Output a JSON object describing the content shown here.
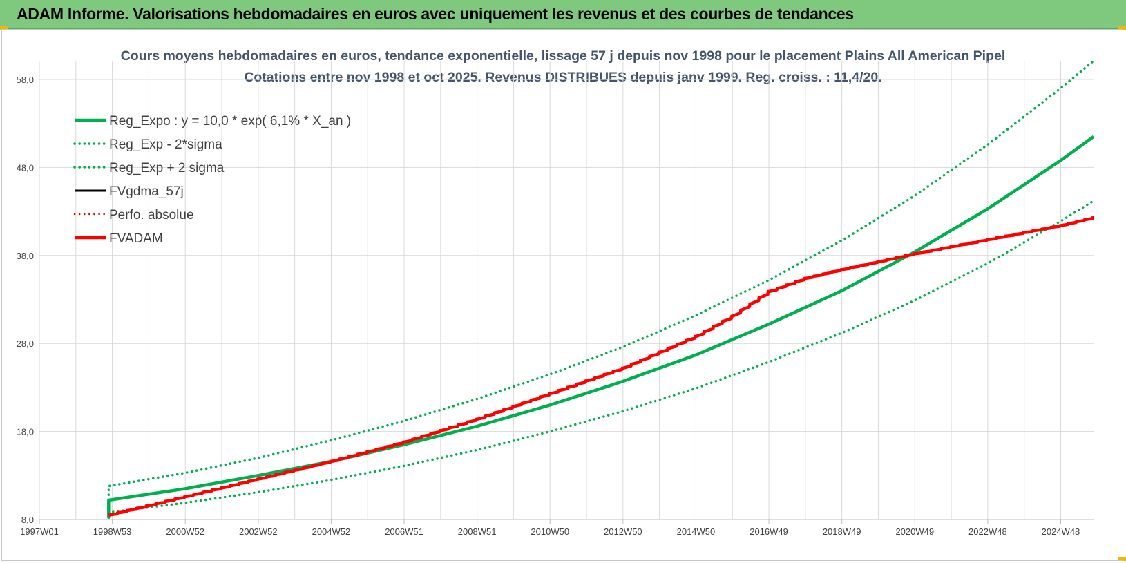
{
  "header": {
    "title": "ADAM Informe. Valorisations hebdomadaires en euros avec uniquement les revenus et des courbes de tendances"
  },
  "chart_data": {
    "type": "line",
    "title": "Cours moyens hebdomadaires en euros, tendance exponentielle, lissage 57 j depuis nov 1998  pour le placement Plains All American Pipel",
    "subtitle": "Cotations entre nov 1998 et oct 2025. Revenus DISTRIBUES depuis janv 1999. Reg. croiss. : 11,4/20.",
    "xlabel": "",
    "ylabel": "",
    "ylim": [
      8,
      58
    ],
    "xlim": [
      1997.0,
      2025.9
    ],
    "y_ticks": [
      "8,0",
      "18,0",
      "28,0",
      "38,0",
      "48,0",
      "58,0"
    ],
    "x_ticks": [
      {
        "x": 1997.0,
        "label": "1997W01"
      },
      {
        "x": 1999.0,
        "label": "1998W53"
      },
      {
        "x": 2001.0,
        "label": "2000W52"
      },
      {
        "x": 2003.0,
        "label": "2002W52"
      },
      {
        "x": 2005.0,
        "label": "2004W52"
      },
      {
        "x": 2007.0,
        "label": "2006W51"
      },
      {
        "x": 2009.0,
        "label": "2008W51"
      },
      {
        "x": 2011.0,
        "label": "2010W50"
      },
      {
        "x": 2013.0,
        "label": "2012W50"
      },
      {
        "x": 2015.0,
        "label": "2014W50"
      },
      {
        "x": 2017.0,
        "label": "2016W49"
      },
      {
        "x": 2019.0,
        "label": "2018W49"
      },
      {
        "x": 2021.0,
        "label": "2020W49"
      },
      {
        "x": 2023.0,
        "label": "2022W48"
      },
      {
        "x": 2025.0,
        "label": "2024W48"
      }
    ],
    "grid": true,
    "legend_position": "top-left",
    "series": [
      {
        "name": "Reg_Expo : y = 10,0 * exp( 6,1% *  X_an )",
        "color": "#00b050",
        "style": "solid",
        "width": 4.5,
        "x": [
          1998.9,
          1998.9,
          2001,
          2003,
          2005,
          2007,
          2009,
          2011,
          2013,
          2015,
          2017,
          2019,
          2021,
          2023,
          2025,
          2025.9
        ],
        "y": [
          8.2,
          10.2,
          11.5,
          13.0,
          14.6,
          16.5,
          18.6,
          21.0,
          23.7,
          26.7,
          30.2,
          34.0,
          38.4,
          43.3,
          48.8,
          51.5
        ]
      },
      {
        "name": "Reg_Exp - 2*sigma",
        "color": "#00b050",
        "style": "dotted",
        "width": 3.5,
        "x": [
          1998.9,
          1998.9,
          2001,
          2003,
          2005,
          2007,
          2009,
          2011,
          2013,
          2015,
          2017,
          2019,
          2021,
          2023,
          2025,
          2025.9
        ],
        "y": [
          8.2,
          8.8,
          9.9,
          11.1,
          12.5,
          14.1,
          15.9,
          18.0,
          20.3,
          22.9,
          25.9,
          29.2,
          32.9,
          37.1,
          41.9,
          44.2
        ]
      },
      {
        "name": "Reg_Exp + 2 sigma",
        "color": "#00b050",
        "style": "dotted",
        "width": 3.5,
        "x": [
          1998.9,
          1998.9,
          2001,
          2003,
          2005,
          2007,
          2009,
          2011,
          2013,
          2015,
          2017,
          2019,
          2021,
          2023,
          2025,
          2025.9
        ],
        "y": [
          10.8,
          11.8,
          13.3,
          15.0,
          17.0,
          19.2,
          21.7,
          24.5,
          27.6,
          31.2,
          35.2,
          39.7,
          44.8,
          50.6,
          57.0,
          60.1
        ]
      },
      {
        "name": "FVgdma_57j",
        "color": "#000000",
        "style": "solid",
        "width": 3,
        "x": [],
        "y": []
      },
      {
        "name": "Perfo. absolue",
        "color": "#e00000",
        "style": "dotted",
        "width": 2.5,
        "x": [],
        "y": []
      },
      {
        "name": "FVADAM",
        "color": "#ff0000",
        "style": "solid",
        "width": 4.5,
        "x": [
          1998.9,
          2001,
          2003,
          2005,
          2007,
          2009,
          2011,
          2013,
          2015,
          2016,
          2017,
          2018,
          2019,
          2020,
          2021,
          2023,
          2025,
          2025.9
        ],
        "y": [
          8.5,
          10.6,
          12.6,
          14.6,
          16.8,
          19.4,
          22.3,
          25.2,
          28.8,
          31.1,
          33.9,
          35.4,
          36.4,
          37.3,
          38.2,
          39.8,
          41.4,
          42.3
        ]
      }
    ]
  }
}
